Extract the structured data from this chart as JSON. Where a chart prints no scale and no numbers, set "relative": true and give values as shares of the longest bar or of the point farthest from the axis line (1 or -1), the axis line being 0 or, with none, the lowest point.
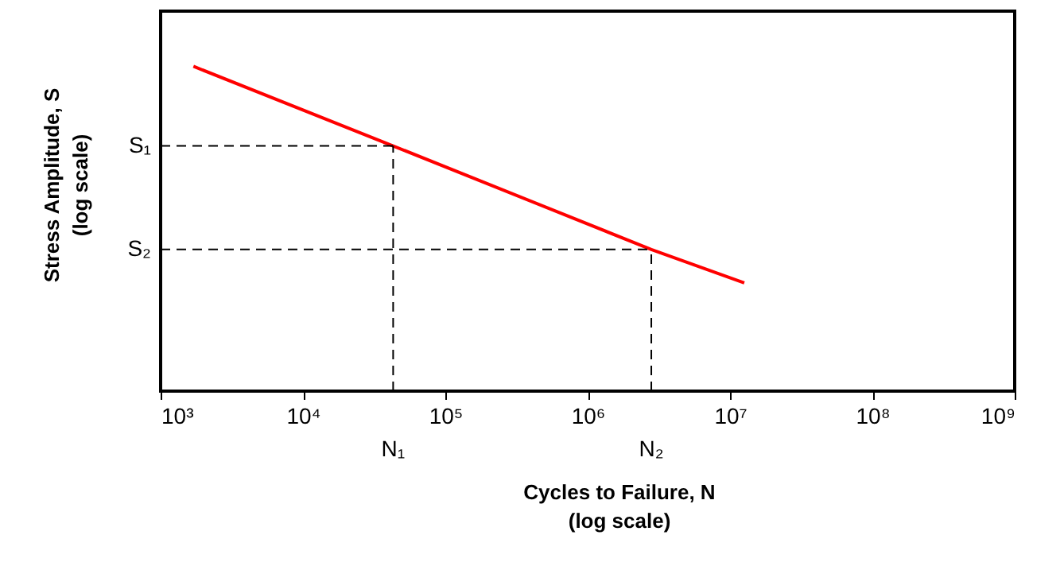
{
  "chart_data": {
    "type": "line",
    "relative": true,
    "log": "x",
    "xlabel": "Cycles to Failure, N\n(log scale)",
    "ylabel": "Stress Amplitude, S\n(log scale)",
    "x": [
      1700,
      43000,
      2800000,
      12600000
    ],
    "series": [
      {
        "color": "#ff0000",
        "values": [
          1,
          0.755,
          0.436,
          0.333
        ]
      }
    ],
    "xlim": [
      1000,
      1000000000
    ],
    "xticks": [
      {
        "value": 1000,
        "label": "10³"
      },
      {
        "value": 10000,
        "label": "10⁴"
      },
      {
        "value": 100000,
        "label": "10⁵"
      },
      {
        "value": 1000000,
        "label": "10⁶"
      },
      {
        "value": 10000000,
        "label": "10⁷"
      },
      {
        "value": 100000000,
        "label": "10⁸"
      },
      {
        "value": 1000000000,
        "label": "10⁹"
      }
    ],
    "ref_lines": [
      {
        "axis": "y",
        "value": 0.755,
        "label": "S₁",
        "color": "#000000",
        "line_style": "dashed"
      },
      {
        "axis": "y",
        "value": 0.436,
        "label": "S₂",
        "color": "#000000",
        "line_style": "dashed"
      },
      {
        "axis": "x",
        "value": 43000,
        "label": "N₁",
        "color": "#000000",
        "line_style": "dashed"
      },
      {
        "axis": "x",
        "value": 2800000,
        "label": "N₂",
        "color": "#000000",
        "line_style": "dashed"
      }
    ],
    "grid": false,
    "marker": "none",
    "line_style": "solid"
  }
}
